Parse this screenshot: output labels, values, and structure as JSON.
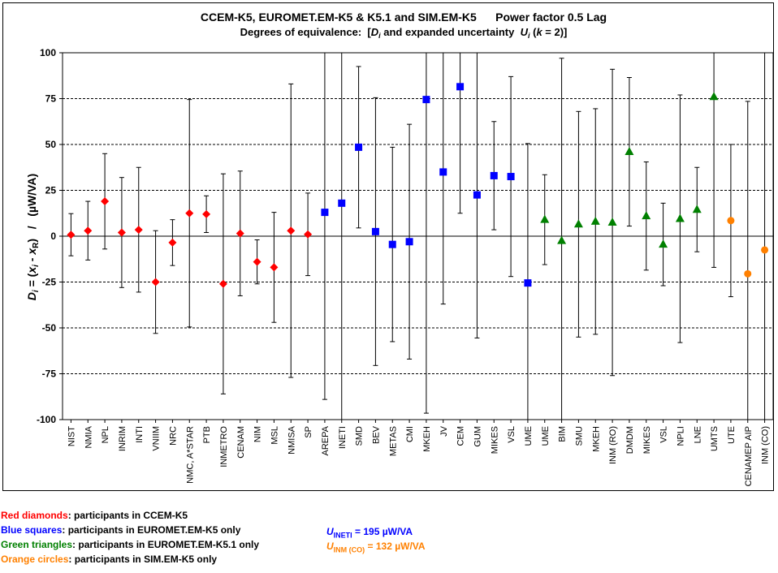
{
  "chart_data": {
    "type": "scatter",
    "title": "CCEM-K5, EUROMET.EM-K5 & K5.1 and SIM.EM-K5      Power factor 0.5 Lag",
    "subtitle": {
      "prefix": "Degrees of equivalence:  [",
      "d_sym": "D",
      "d_sub": "i",
      "middle": " and expanded uncertainty  ",
      "u_sym": "U",
      "u_sub": "i",
      "open_paren": " (",
      "k_sym": "k",
      "k_rest": " = 2)]"
    },
    "ylabel": {
      "d_sym": "D",
      "d_sub": "i",
      "eq": " = (",
      "x1": "x",
      "x1_sub": "i",
      "minus": " - ",
      "x2": "x",
      "x2_sub": "R",
      "close": ")",
      "sep": "   /   ",
      "unit": "(µW/VA)"
    },
    "ylim": [
      -100,
      100
    ],
    "yticks": [
      100,
      75,
      50,
      25,
      0,
      -25,
      -50,
      -75,
      -100
    ],
    "grid": "horizontal dashed",
    "categories": [
      "NIST",
      "NMIA",
      "NPL",
      "INRIM",
      "INTI",
      "VNIIM",
      "NRC",
      "NMC, A*STAR",
      "PTB",
      "INMETRO",
      "CENAM",
      "NIM",
      "MSL",
      "NMISA",
      "SP",
      "AREPA",
      "INETI",
      "SMD",
      "BEV",
      "METAS",
      "CMI",
      "MKEH",
      "JV",
      "CEM",
      "GUM",
      "MIKES",
      "VSL",
      "UME",
      "UME",
      "BIM",
      "SMU",
      "MKEH",
      "INM (RO)",
      "DMDM",
      "MIKES",
      "VSL",
      "NPLI",
      "LNE",
      "UMTS",
      "UTE",
      "CENAMEP AIP",
      "INM (CO)"
    ],
    "series": [
      {
        "marker": "diamond",
        "color": "#ff0000",
        "points": [
          {
            "x": "NIST",
            "y": 0.8,
            "U": 11.5
          },
          {
            "x": "NMIA",
            "y": 3,
            "U": 16
          },
          {
            "x": "NPL",
            "y": 19,
            "U": 26
          },
          {
            "x": "INRIM",
            "y": 2,
            "U": 30
          },
          {
            "x": "INTI",
            "y": 3.5,
            "U": 34
          },
          {
            "x": "VNIIM",
            "y": -25,
            "U": 28
          },
          {
            "x": "NRC",
            "y": -3.5,
            "U": 12.5
          },
          {
            "x": "NMC, A*STAR",
            "y": 12.5,
            "U": 62
          },
          {
            "x": "PTB",
            "y": 12,
            "U": 10
          },
          {
            "x": "INMETRO",
            "y": -26,
            "U": 60
          },
          {
            "x": "CENAM",
            "y": 1.5,
            "U": 34
          },
          {
            "x": "NIM",
            "y": -14,
            "U": 12
          },
          {
            "x": "MSL",
            "y": -17,
            "U": 30
          },
          {
            "x": "NMISA",
            "y": 3,
            "U": 80
          },
          {
            "x": "SP",
            "y": 1,
            "U": 22.5
          }
        ]
      },
      {
        "marker": "square",
        "color": "#0000ff",
        "points": [
          {
            "x": "AREPA",
            "y": 13,
            "U": 102
          },
          {
            "x": "INETI",
            "y": 18,
            "U": 195
          },
          {
            "x": "SMD",
            "y": 48.5,
            "U": 44
          },
          {
            "x": "BEV",
            "y": 2.5,
            "U": 73
          },
          {
            "x": "METAS",
            "y": -4.5,
            "U": 53
          },
          {
            "x": "CMI",
            "y": -3,
            "U": 64
          },
          {
            "x": "MKEH",
            "y": 74.5,
            "U": 171
          },
          {
            "x": "JV",
            "y": 35,
            "U": 72
          },
          {
            "x": "CEM",
            "y": 81.5,
            "U": 69
          },
          {
            "x": "GUM",
            "y": 22.5,
            "U": 78
          },
          {
            "x": "MIKES",
            "y": 33,
            "U": 29.5
          },
          {
            "x": "VSL",
            "y": 32.5,
            "U": 54.5
          },
          {
            "x": "UME",
            "y": -25.5,
            "U": 76
          }
        ]
      },
      {
        "marker": "triangle",
        "color": "#008000",
        "points": [
          {
            "x": "UME",
            "y": 9,
            "U": 24.5
          },
          {
            "x": "BIM",
            "y": -2.5,
            "U": 99.5
          },
          {
            "x": "SMU",
            "y": 6.5,
            "U": 61.5
          },
          {
            "x": "MKEH",
            "y": 8,
            "U": 61.5
          },
          {
            "x": "INM (RO)",
            "y": 7.5,
            "U": 83.5
          },
          {
            "x": "DMDM",
            "y": 46,
            "U": 40.5
          },
          {
            "x": "MIKES",
            "y": 11,
            "U": 29.5
          },
          {
            "x": "VSL",
            "y": -4.5,
            "U": 22.5
          },
          {
            "x": "NPLI",
            "y": 9.5,
            "U": 67.5
          },
          {
            "x": "LNE",
            "y": 14.5,
            "U": 23
          },
          {
            "x": "UMTS",
            "y": 76,
            "U": 93
          }
        ]
      },
      {
        "marker": "circle",
        "color": "#ff8000",
        "points": [
          {
            "x": "UTE",
            "y": 8.5,
            "U": 41.5
          },
          {
            "x": "CENAMEP AIP",
            "y": -20.5,
            "U": 94
          },
          {
            "x": "INM (CO)",
            "y": -7.5,
            "U": 132
          }
        ]
      }
    ]
  },
  "legend": {
    "red": {
      "key": "Red diamonds",
      "rest": ": participants in CCEM-K5",
      "color": "#ff0000"
    },
    "blue": {
      "key": "Blue squares",
      "rest": ": participants in EUROMET.EM-K5 only",
      "color": "#0000ff"
    },
    "green": {
      "key": "Green triangles",
      "rest": ": participants in EUROMET.EM-K5.1 only",
      "color": "#008000"
    },
    "orange": {
      "key": "Orange circles",
      "rest": ": participants in SIM.EM-K5 only",
      "color": "#ff8000"
    }
  },
  "notes": {
    "ineti": {
      "sym": "U",
      "sub": "INETI",
      "rest": " = 195 µW/VA",
      "color": "#0000ff"
    },
    "inm": {
      "sym": "U",
      "sub": "INM (CO)",
      "rest": " = 132 µW/VA",
      "color": "#ff8000"
    }
  },
  "colors": {
    "text": "#000000",
    "grid": "#000000",
    "background": "#ffffff"
  }
}
